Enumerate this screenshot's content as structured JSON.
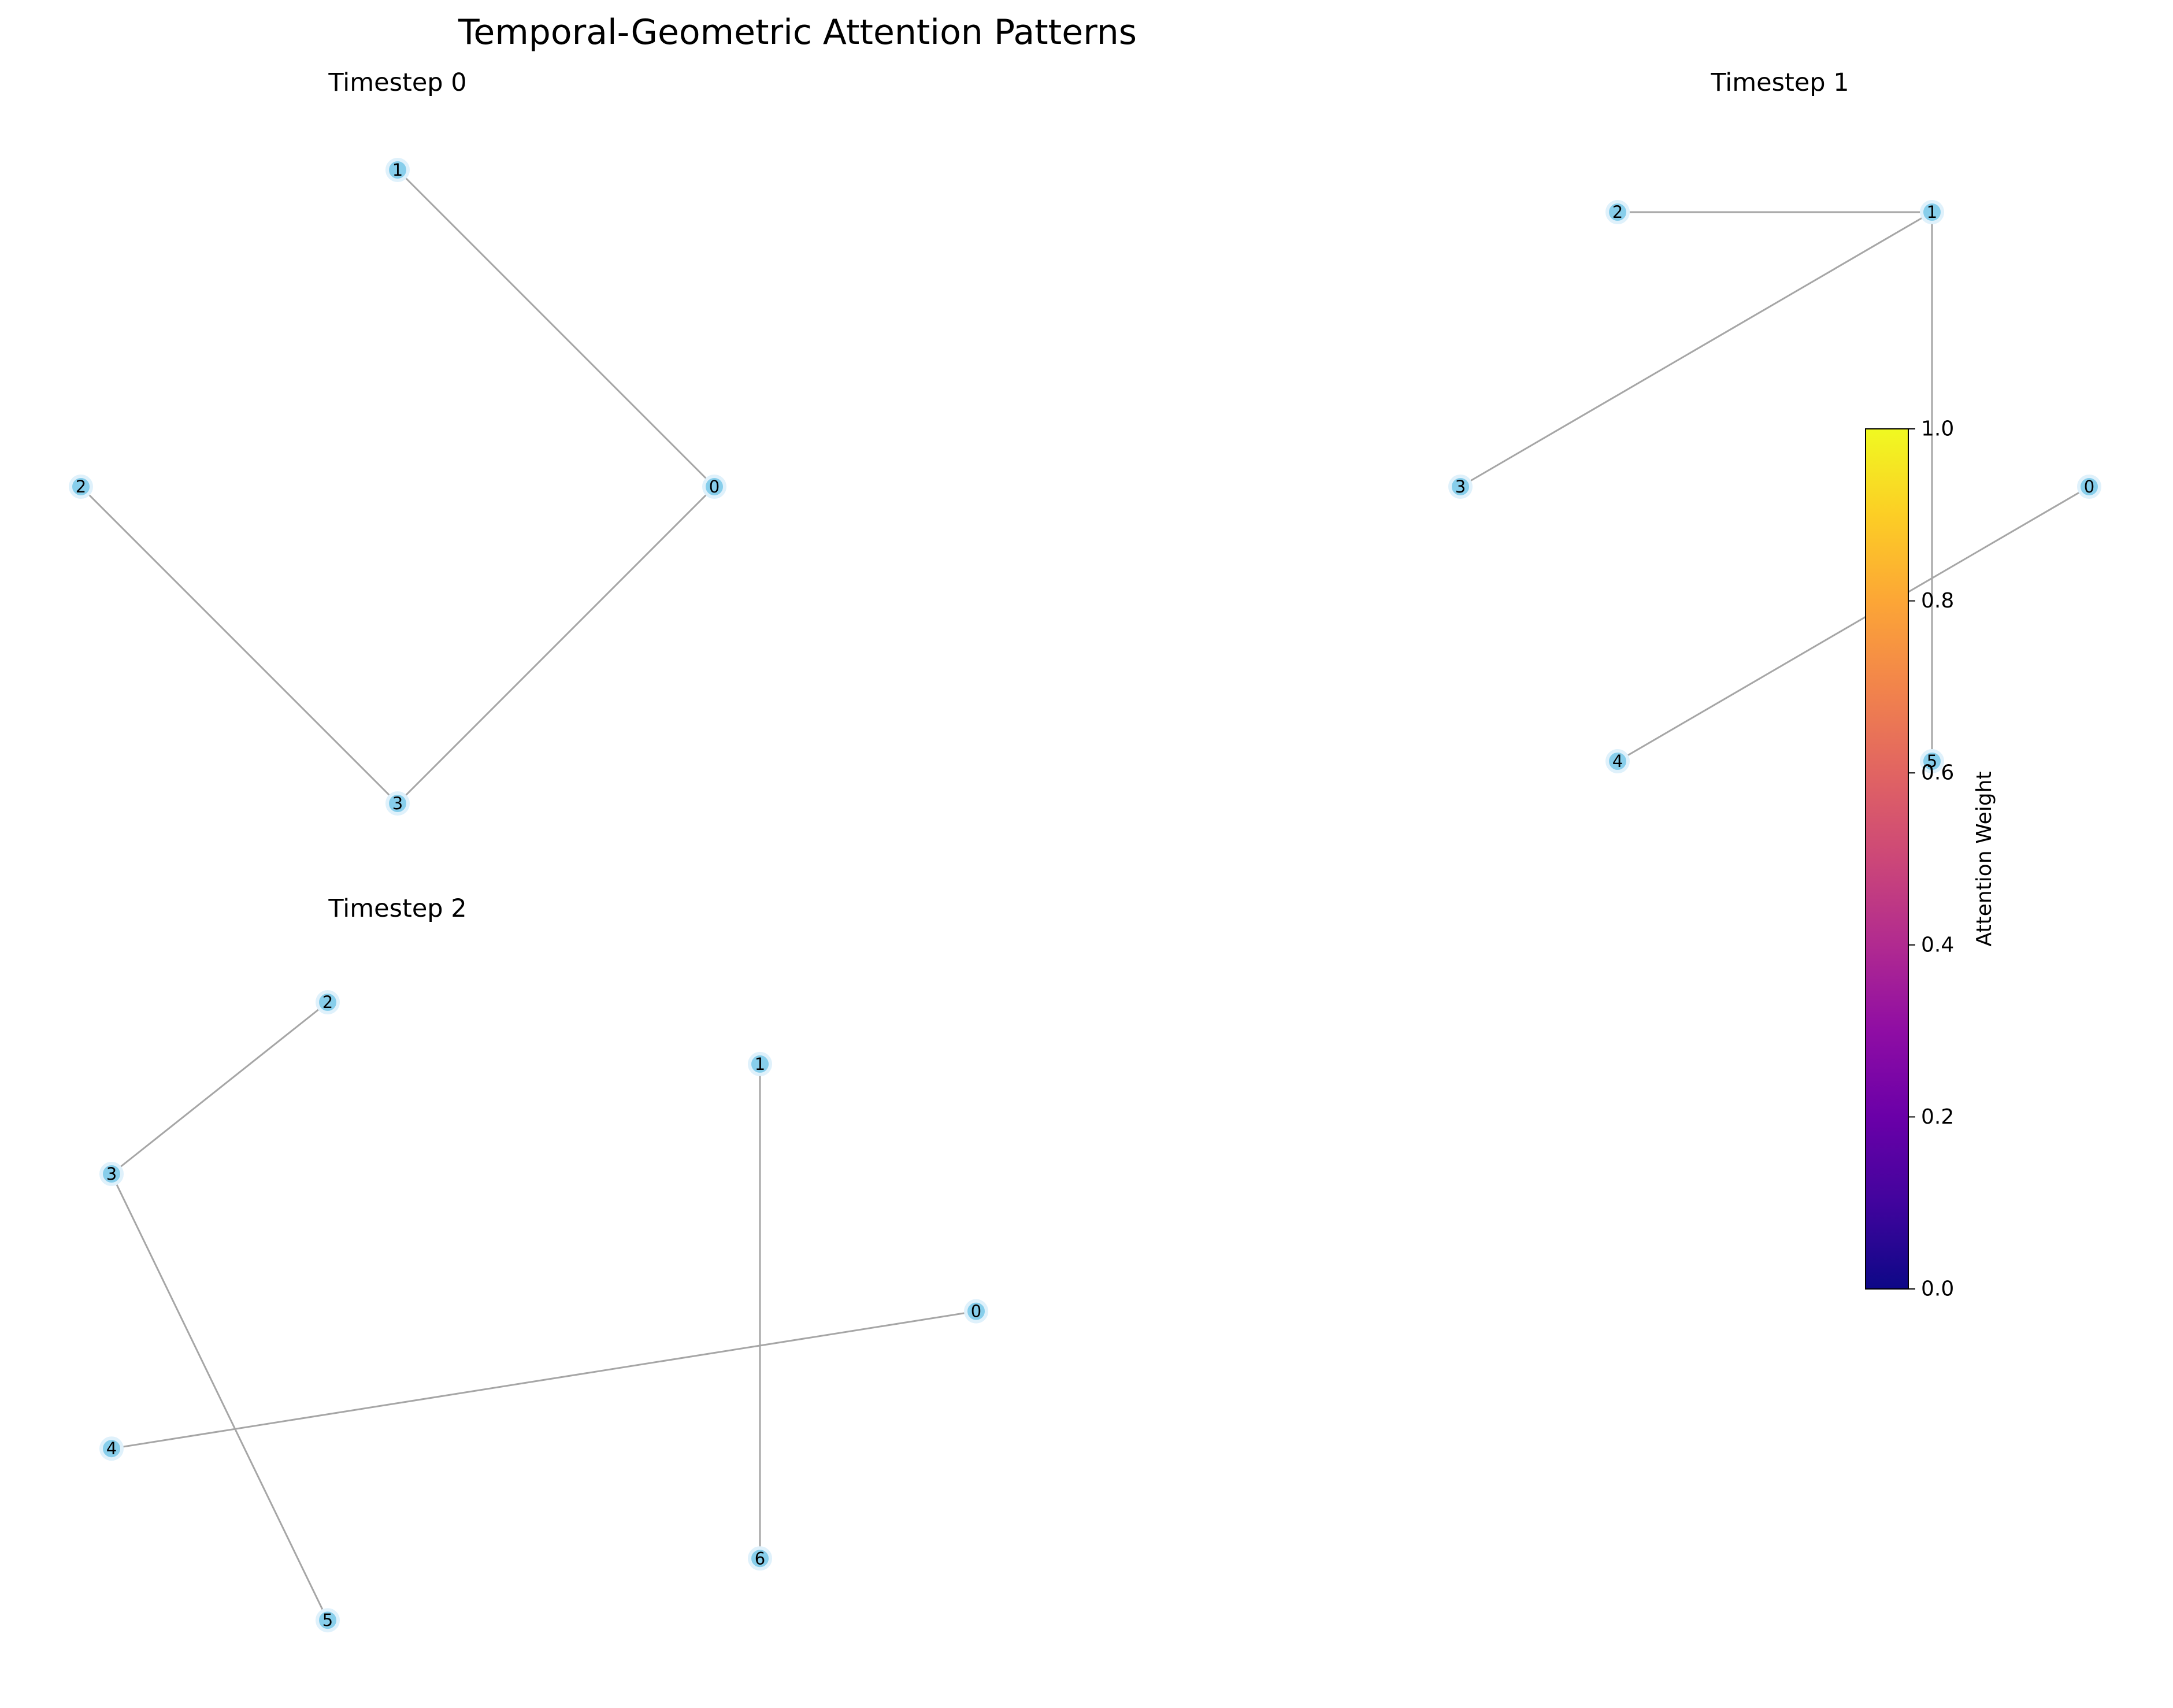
{
  "figure": {
    "title": "Temporal-Geometric Attention Patterns"
  },
  "panels": [
    {
      "title": "Timestep 0",
      "nodes": [
        {
          "id": "0",
          "x": 2,
          "y": 0
        },
        {
          "id": "1",
          "x": 1,
          "y": 1
        },
        {
          "id": "2",
          "x": 0,
          "y": 0
        },
        {
          "id": "3",
          "x": 1,
          "y": -1
        }
      ],
      "edges": [
        [
          "1",
          "0"
        ],
        [
          "0",
          "3"
        ],
        [
          "2",
          "3"
        ]
      ]
    },
    {
      "title": "Timestep 1",
      "nodes": [
        {
          "id": "0",
          "x": 4,
          "y": 0
        },
        {
          "id": "1",
          "x": 3,
          "y": 1
        },
        {
          "id": "2",
          "x": 1,
          "y": 1
        },
        {
          "id": "3",
          "x": 0,
          "y": 0
        },
        {
          "id": "4",
          "x": 1,
          "y": -1
        },
        {
          "id": "5",
          "x": 3,
          "y": -1
        }
      ],
      "edges": [
        [
          "2",
          "1"
        ],
        [
          "1",
          "3"
        ],
        [
          "1",
          "5"
        ],
        [
          "0",
          "4"
        ]
      ]
    },
    {
      "title": "Timestep 2",
      "nodes": [
        {
          "id": "0",
          "x": 4,
          "y": -0.8
        },
        {
          "id": "1",
          "x": 3,
          "y": 0.64
        },
        {
          "id": "2",
          "x": 1,
          "y": 1
        },
        {
          "id": "3",
          "x": 0,
          "y": 0
        },
        {
          "id": "4",
          "x": 0,
          "y": -1.6
        },
        {
          "id": "5",
          "x": 1,
          "y": -2.6
        },
        {
          "id": "6",
          "x": 3,
          "y": -2.24
        }
      ],
      "edges": [
        [
          "2",
          "3"
        ],
        [
          "3",
          "5"
        ],
        [
          "1",
          "6"
        ],
        [
          "4",
          "0"
        ]
      ]
    }
  ],
  "colorbar": {
    "label": "Attention Weight",
    "colormap": "plasma",
    "range": [
      0,
      1
    ],
    "ticks": [
      "0.0",
      "0.2",
      "0.4",
      "0.6",
      "0.8",
      "1.0"
    ],
    "stops": [
      "#0d0887",
      "#41049d",
      "#6a00a8",
      "#8f0da4",
      "#b12a90",
      "#cc4778",
      "#e16462",
      "#f2844b",
      "#fca636",
      "#fcce25",
      "#f0f921"
    ]
  },
  "colors": {
    "node_fill": "#87ceeb",
    "edge": "#a6a6a6"
  }
}
